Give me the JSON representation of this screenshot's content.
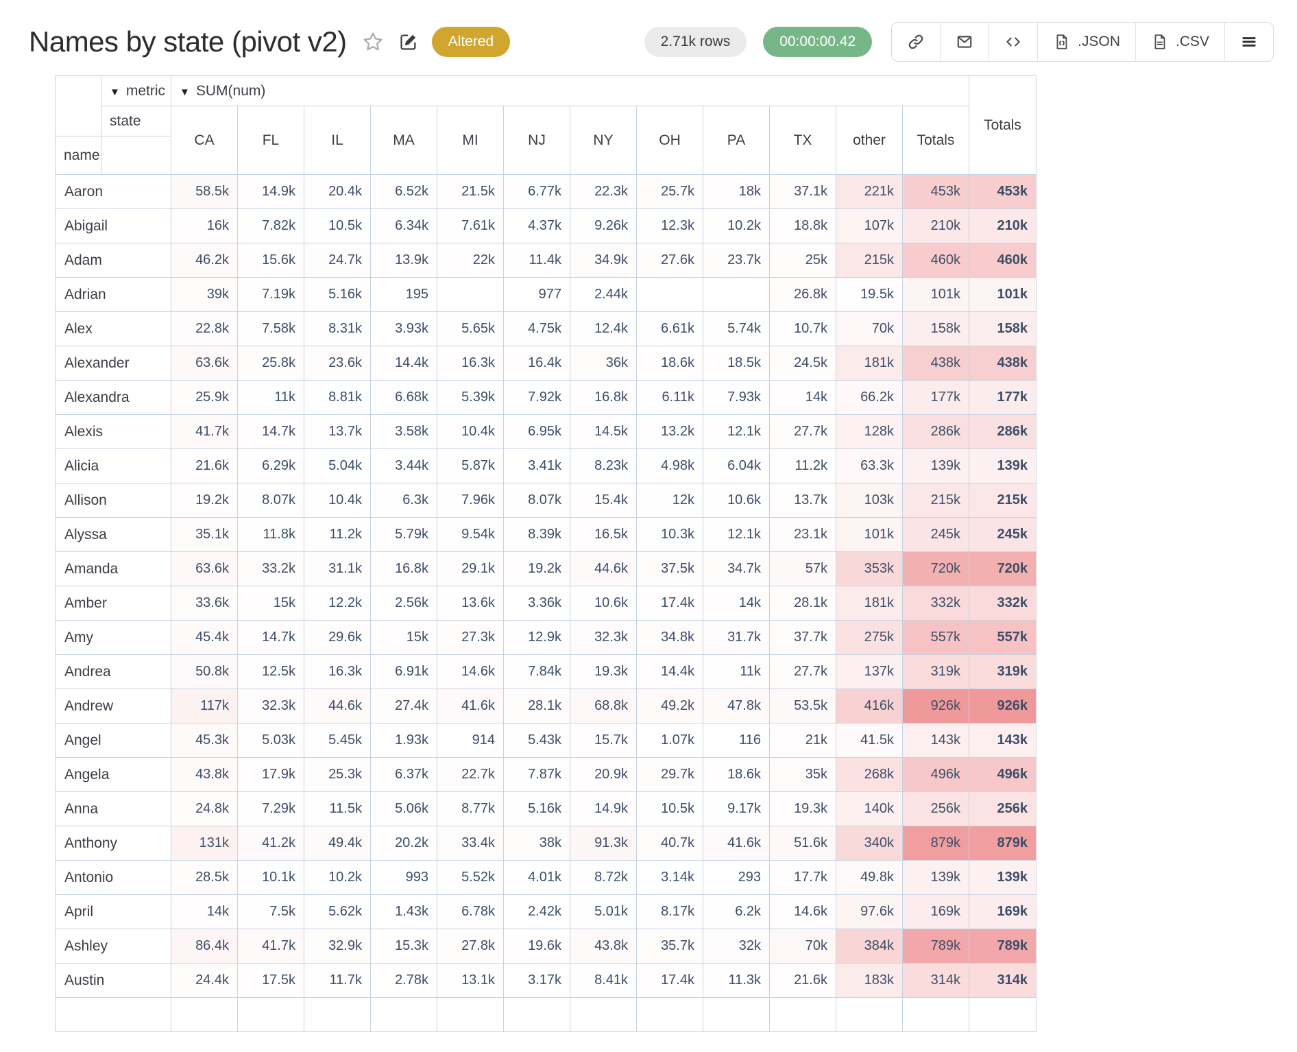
{
  "header": {
    "title": "Names by state (pivot v2)",
    "altered_badge": "Altered",
    "rows_badge": "2.71k rows",
    "time_badge": "00:00:00.42",
    "buttons": {
      "json_label": ".JSON",
      "csv_label": ".CSV"
    }
  },
  "icons": {
    "dropdown": "▼",
    "star": "star-outline",
    "edit": "pencil-square",
    "link": "chain-link",
    "mail": "envelope",
    "code": "angle-brackets",
    "json_file": "file-code",
    "csv_file": "file-lines",
    "menu": "hamburger"
  },
  "colors": {
    "altered_bg": "#d0a62e",
    "time_bg": "#77b787",
    "rows_bg": "#ebebeb",
    "grid_border": "#c7d3e1",
    "value_text": "#3d4e68",
    "heat_max_rgb": [
      240,
      153,
      155
    ]
  },
  "pivot": {
    "metric_label": "metric",
    "metric_value": "SUM(num)",
    "state_label": "state",
    "name_label": "name",
    "grand_total_label": "Totals",
    "heatmap_max_value": 926000,
    "columns": [
      "CA",
      "FL",
      "IL",
      "MA",
      "MI",
      "NJ",
      "NY",
      "OH",
      "PA",
      "TX",
      "other",
      "Totals"
    ],
    "rows": [
      {
        "name": "Aaron",
        "values": [
          "58.5k",
          "14.9k",
          "20.4k",
          "6.52k",
          "21.5k",
          "6.77k",
          "22.3k",
          "25.7k",
          "18k",
          "37.1k",
          "221k",
          "453k"
        ],
        "total": "453k"
      },
      {
        "name": "Abigail",
        "values": [
          "16k",
          "7.82k",
          "10.5k",
          "6.34k",
          "7.61k",
          "4.37k",
          "9.26k",
          "12.3k",
          "10.2k",
          "18.8k",
          "107k",
          "210k"
        ],
        "total": "210k"
      },
      {
        "name": "Adam",
        "values": [
          "46.2k",
          "15.6k",
          "24.7k",
          "13.9k",
          "22k",
          "11.4k",
          "34.9k",
          "27.6k",
          "23.7k",
          "25k",
          "215k",
          "460k"
        ],
        "total": "460k"
      },
      {
        "name": "Adrian",
        "values": [
          "39k",
          "7.19k",
          "5.16k",
          "195",
          "",
          "977",
          "2.44k",
          "",
          "",
          "26.8k",
          "19.5k",
          "101k"
        ],
        "total": "101k"
      },
      {
        "name": "Alex",
        "values": [
          "22.8k",
          "7.58k",
          "8.31k",
          "3.93k",
          "5.65k",
          "4.75k",
          "12.4k",
          "6.61k",
          "5.74k",
          "10.7k",
          "70k",
          "158k"
        ],
        "total": "158k"
      },
      {
        "name": "Alexander",
        "values": [
          "63.6k",
          "25.8k",
          "23.6k",
          "14.4k",
          "16.3k",
          "16.4k",
          "36k",
          "18.6k",
          "18.5k",
          "24.5k",
          "181k",
          "438k"
        ],
        "total": "438k"
      },
      {
        "name": "Alexandra",
        "values": [
          "25.9k",
          "11k",
          "8.81k",
          "6.68k",
          "5.39k",
          "7.92k",
          "16.8k",
          "6.11k",
          "7.93k",
          "14k",
          "66.2k",
          "177k"
        ],
        "total": "177k"
      },
      {
        "name": "Alexis",
        "values": [
          "41.7k",
          "14.7k",
          "13.7k",
          "3.58k",
          "10.4k",
          "6.95k",
          "14.5k",
          "13.2k",
          "12.1k",
          "27.7k",
          "128k",
          "286k"
        ],
        "total": "286k"
      },
      {
        "name": "Alicia",
        "values": [
          "21.6k",
          "6.29k",
          "5.04k",
          "3.44k",
          "5.87k",
          "3.41k",
          "8.23k",
          "4.98k",
          "6.04k",
          "11.2k",
          "63.3k",
          "139k"
        ],
        "total": "139k"
      },
      {
        "name": "Allison",
        "values": [
          "19.2k",
          "8.07k",
          "10.4k",
          "6.3k",
          "7.96k",
          "8.07k",
          "15.4k",
          "12k",
          "10.6k",
          "13.7k",
          "103k",
          "215k"
        ],
        "total": "215k"
      },
      {
        "name": "Alyssa",
        "values": [
          "35.1k",
          "11.8k",
          "11.2k",
          "5.79k",
          "9.54k",
          "8.39k",
          "16.5k",
          "10.3k",
          "12.1k",
          "23.1k",
          "101k",
          "245k"
        ],
        "total": "245k"
      },
      {
        "name": "Amanda",
        "values": [
          "63.6k",
          "33.2k",
          "31.1k",
          "16.8k",
          "29.1k",
          "19.2k",
          "44.6k",
          "37.5k",
          "34.7k",
          "57k",
          "353k",
          "720k"
        ],
        "total": "720k"
      },
      {
        "name": "Amber",
        "values": [
          "33.6k",
          "15k",
          "12.2k",
          "2.56k",
          "13.6k",
          "3.36k",
          "10.6k",
          "17.4k",
          "14k",
          "28.1k",
          "181k",
          "332k"
        ],
        "total": "332k"
      },
      {
        "name": "Amy",
        "values": [
          "45.4k",
          "14.7k",
          "29.6k",
          "15k",
          "27.3k",
          "12.9k",
          "32.3k",
          "34.8k",
          "31.7k",
          "37.7k",
          "275k",
          "557k"
        ],
        "total": "557k"
      },
      {
        "name": "Andrea",
        "values": [
          "50.8k",
          "12.5k",
          "16.3k",
          "6.91k",
          "14.6k",
          "7.84k",
          "19.3k",
          "14.4k",
          "11k",
          "27.7k",
          "137k",
          "319k"
        ],
        "total": "319k"
      },
      {
        "name": "Andrew",
        "values": [
          "117k",
          "32.3k",
          "44.6k",
          "27.4k",
          "41.6k",
          "28.1k",
          "68.8k",
          "49.2k",
          "47.8k",
          "53.5k",
          "416k",
          "926k"
        ],
        "total": "926k"
      },
      {
        "name": "Angel",
        "values": [
          "45.3k",
          "5.03k",
          "5.45k",
          "1.93k",
          "914",
          "5.43k",
          "15.7k",
          "1.07k",
          "116",
          "21k",
          "41.5k",
          "143k"
        ],
        "total": "143k"
      },
      {
        "name": "Angela",
        "values": [
          "43.8k",
          "17.9k",
          "25.3k",
          "6.37k",
          "22.7k",
          "7.87k",
          "20.9k",
          "29.7k",
          "18.6k",
          "35k",
          "268k",
          "496k"
        ],
        "total": "496k"
      },
      {
        "name": "Anna",
        "values": [
          "24.8k",
          "7.29k",
          "11.5k",
          "5.06k",
          "8.77k",
          "5.16k",
          "14.9k",
          "10.5k",
          "9.17k",
          "19.3k",
          "140k",
          "256k"
        ],
        "total": "256k"
      },
      {
        "name": "Anthony",
        "values": [
          "131k",
          "41.2k",
          "49.4k",
          "20.2k",
          "33.4k",
          "38k",
          "91.3k",
          "40.7k",
          "41.6k",
          "51.6k",
          "340k",
          "879k"
        ],
        "total": "879k"
      },
      {
        "name": "Antonio",
        "values": [
          "28.5k",
          "10.1k",
          "10.2k",
          "993",
          "5.52k",
          "4.01k",
          "8.72k",
          "3.14k",
          "293",
          "17.7k",
          "49.8k",
          "139k"
        ],
        "total": "139k"
      },
      {
        "name": "April",
        "values": [
          "14k",
          "7.5k",
          "5.62k",
          "1.43k",
          "6.78k",
          "2.42k",
          "5.01k",
          "8.17k",
          "6.2k",
          "14.6k",
          "97.6k",
          "169k"
        ],
        "total": "169k"
      },
      {
        "name": "Ashley",
        "values": [
          "86.4k",
          "41.7k",
          "32.9k",
          "15.3k",
          "27.8k",
          "19.6k",
          "43.8k",
          "35.7k",
          "32k",
          "70k",
          "384k",
          "789k"
        ],
        "total": "789k"
      },
      {
        "name": "Austin",
        "values": [
          "24.4k",
          "17.5k",
          "11.7k",
          "2.78k",
          "13.1k",
          "3.17k",
          "8.41k",
          "17.4k",
          "11.3k",
          "21.6k",
          "183k",
          "314k"
        ],
        "total": "314k"
      }
    ]
  }
}
